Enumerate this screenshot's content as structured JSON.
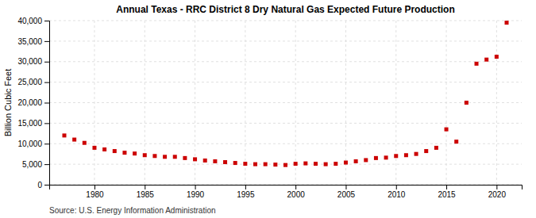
{
  "chart_data": {
    "type": "scatter",
    "title": "Annual Texas - RRC District 8 Dry Natural Gas Expected Future Production",
    "ylabel": "Billion Cubic Feet",
    "annotations": [
      "Source: U.S. Energy Information Administration"
    ],
    "color": "#cc0000",
    "marker": "square",
    "grid": true,
    "x": [
      1977,
      1978,
      1979,
      1980,
      1981,
      1982,
      1983,
      1984,
      1985,
      1986,
      1987,
      1988,
      1989,
      1990,
      1991,
      1992,
      1993,
      1994,
      1995,
      1996,
      1997,
      1998,
      1999,
      2000,
      2001,
      2002,
      2003,
      2004,
      2005,
      2006,
      2007,
      2008,
      2009,
      2010,
      2011,
      2012,
      2013,
      2014,
      2015,
      2016,
      2017,
      2018,
      2019,
      2020,
      2021
    ],
    "values": [
      12000,
      11000,
      10200,
      9000,
      8600,
      8200,
      7800,
      7600,
      7200,
      7000,
      6800,
      6800,
      6500,
      6200,
      5900,
      5700,
      5500,
      5300,
      5100,
      5000,
      5000,
      4900,
      4800,
      5100,
      5200,
      5100,
      5000,
      5100,
      5400,
      5700,
      6000,
      6500,
      6600,
      7000,
      7200,
      7500,
      8200,
      9000,
      13500,
      10500,
      20000,
      29500,
      30500,
      31200,
      39500
    ],
    "xlim": [
      1975.5,
      2022.5
    ],
    "xticks": [
      1980,
      1985,
      1990,
      1995,
      2000,
      2005,
      2010,
      2015,
      2020
    ],
    "ylim": [
      0,
      40000
    ],
    "yticks": [
      0,
      {
        "value": 5000,
        "label": "5,000"
      },
      {
        "value": 10000,
        "label": "10,000"
      },
      {
        "value": 15000,
        "label": "15,000"
      },
      {
        "value": 20000,
        "label": "20,000"
      },
      {
        "value": 25000,
        "label": "25,000"
      },
      {
        "value": 30000,
        "label": "30,000"
      },
      {
        "value": 35000,
        "label": "35,000"
      },
      {
        "value": 40000,
        "label": "40,000"
      }
    ]
  }
}
